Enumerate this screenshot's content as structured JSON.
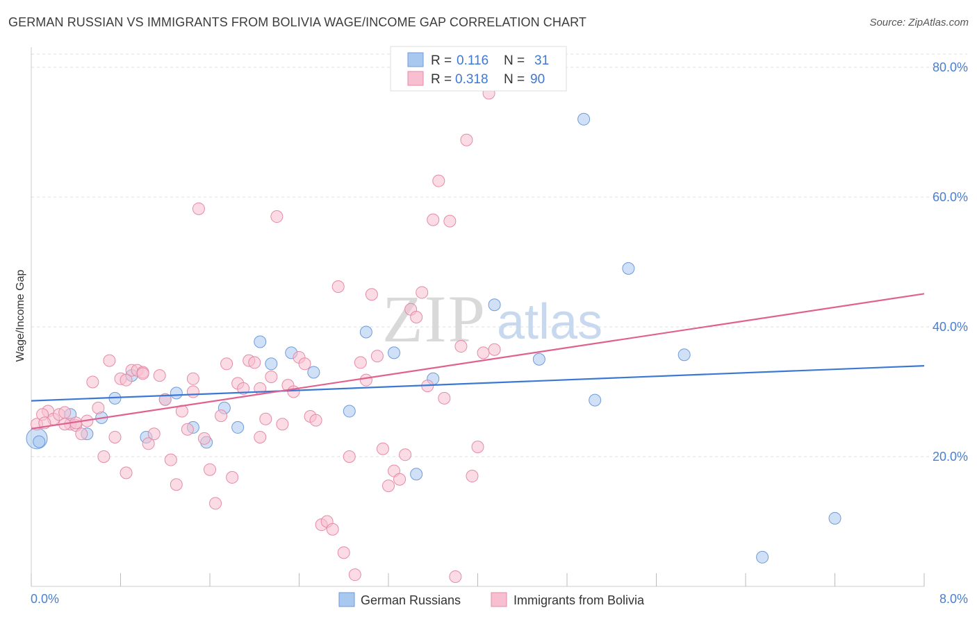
{
  "title": "GERMAN RUSSIAN VS IMMIGRANTS FROM BOLIVIA WAGE/INCOME GAP CORRELATION CHART",
  "source": "Source: ZipAtlas.com",
  "watermark": {
    "zip": "ZIP",
    "atlas": "atlas"
  },
  "legend_top": {
    "r_label": "R =",
    "n_label": "N =",
    "rows": [
      {
        "r": "0.116",
        "n": "31"
      },
      {
        "r": "0.318",
        "n": "90"
      }
    ]
  },
  "chart_data": {
    "type": "scatter",
    "title": "GERMAN RUSSIAN VS IMMIGRANTS FROM BOLIVIA WAGE/INCOME GAP CORRELATION CHART",
    "xlabel": "",
    "ylabel": "Wage/Income Gap",
    "xlim": [
      0,
      8
    ],
    "ylim": [
      0,
      82
    ],
    "x_tick_labels": [
      "0.0%",
      "8.0%"
    ],
    "y_ticks": [
      20,
      40,
      60,
      80
    ],
    "y_tick_labels": [
      "20.0%",
      "40.0%",
      "60.0%",
      "80.0%"
    ],
    "grid": true,
    "legend_position": "bottom",
    "series": [
      {
        "name": "German Russians",
        "color": "#a9c8f0",
        "stroke": "#6f9ad8",
        "line_color": "#3a78d4",
        "trend": {
          "x": [
            0,
            8
          ],
          "y": [
            28.6,
            34.0
          ]
        },
        "points": [
          [
            0.05,
            22.8
          ],
          [
            0.35,
            26.5
          ],
          [
            0.5,
            23.5
          ],
          [
            0.63,
            26.0
          ],
          [
            0.75,
            29.0
          ],
          [
            0.9,
            32.5
          ],
          [
            1.03,
            23.0
          ],
          [
            1.2,
            28.8
          ],
          [
            1.3,
            29.8
          ],
          [
            1.45,
            24.5
          ],
          [
            1.57,
            22.2
          ],
          [
            1.73,
            27.5
          ],
          [
            1.85,
            24.5
          ],
          [
            2.05,
            37.7
          ],
          [
            2.15,
            34.3
          ],
          [
            2.33,
            36.0
          ],
          [
            2.53,
            33.0
          ],
          [
            2.85,
            27.0
          ],
          [
            3.0,
            39.2
          ],
          [
            3.25,
            36.0
          ],
          [
            3.45,
            17.3
          ],
          [
            3.6,
            32.0
          ],
          [
            4.15,
            43.4
          ],
          [
            4.55,
            35.0
          ],
          [
            4.95,
            72.0
          ],
          [
            5.05,
            28.7
          ],
          [
            5.35,
            49.0
          ],
          [
            5.85,
            35.7
          ],
          [
            6.55,
            4.5
          ],
          [
            7.2,
            10.5
          ],
          [
            0.07,
            22.3
          ]
        ]
      },
      {
        "name": "Immigrants from Bolivia",
        "color": "#f7bfd0",
        "stroke": "#e58aa8",
        "line_color": "#e0608e",
        "trend": {
          "x": [
            0,
            8
          ],
          "y": [
            24.3,
            45.1
          ]
        },
        "points": [
          [
            0.05,
            25.0
          ],
          [
            0.15,
            27.0
          ],
          [
            0.2,
            25.8
          ],
          [
            0.25,
            26.5
          ],
          [
            0.3,
            26.8
          ],
          [
            0.35,
            25.0
          ],
          [
            0.4,
            24.8
          ],
          [
            0.45,
            23.5
          ],
          [
            0.5,
            25.5
          ],
          [
            0.55,
            31.5
          ],
          [
            0.6,
            27.5
          ],
          [
            0.65,
            20.0
          ],
          [
            0.7,
            34.8
          ],
          [
            0.75,
            23.0
          ],
          [
            0.8,
            32.0
          ],
          [
            0.85,
            17.5
          ],
          [
            0.9,
            33.3
          ],
          [
            0.95,
            33.3
          ],
          [
            1.0,
            33.0
          ],
          [
            1.05,
            22.0
          ],
          [
            1.1,
            23.5
          ],
          [
            1.15,
            32.5
          ],
          [
            1.2,
            28.8
          ],
          [
            1.25,
            19.5
          ],
          [
            1.3,
            15.7
          ],
          [
            1.35,
            27.0
          ],
          [
            1.4,
            24.2
          ],
          [
            1.45,
            32.0
          ],
          [
            1.5,
            58.2
          ],
          [
            1.55,
            22.8
          ],
          [
            1.6,
            18.0
          ],
          [
            1.65,
            12.8
          ],
          [
            1.7,
            26.3
          ],
          [
            1.75,
            34.3
          ],
          [
            1.8,
            16.8
          ],
          [
            1.85,
            31.3
          ],
          [
            1.9,
            30.5
          ],
          [
            1.95,
            34.8
          ],
          [
            2.0,
            34.5
          ],
          [
            2.05,
            23.0
          ],
          [
            2.1,
            25.8
          ],
          [
            2.15,
            32.3
          ],
          [
            2.2,
            57.0
          ],
          [
            2.25,
            25.0
          ],
          [
            2.3,
            31.0
          ],
          [
            2.35,
            30.0
          ],
          [
            2.4,
            35.3
          ],
          [
            2.45,
            34.3
          ],
          [
            2.5,
            26.2
          ],
          [
            2.55,
            25.6
          ],
          [
            2.6,
            9.5
          ],
          [
            2.65,
            10.0
          ],
          [
            2.7,
            8.8
          ],
          [
            2.75,
            46.2
          ],
          [
            2.8,
            5.2
          ],
          [
            2.85,
            20.0
          ],
          [
            2.9,
            1.8
          ],
          [
            2.95,
            34.5
          ],
          [
            3.0,
            31.8
          ],
          [
            3.05,
            45.0
          ],
          [
            3.1,
            35.5
          ],
          [
            3.15,
            21.2
          ],
          [
            3.2,
            15.5
          ],
          [
            3.25,
            17.8
          ],
          [
            3.3,
            16.5
          ],
          [
            3.35,
            20.3
          ],
          [
            3.4,
            42.7
          ],
          [
            3.45,
            41.5
          ],
          [
            3.5,
            45.3
          ],
          [
            3.55,
            30.9
          ],
          [
            3.6,
            56.5
          ],
          [
            3.65,
            62.5
          ],
          [
            3.7,
            29.0
          ],
          [
            3.75,
            56.3
          ],
          [
            3.8,
            1.5
          ],
          [
            3.85,
            37.0
          ],
          [
            3.9,
            68.8
          ],
          [
            3.95,
            17.0
          ],
          [
            4.0,
            21.5
          ],
          [
            4.05,
            36.0
          ],
          [
            4.1,
            76.0
          ],
          [
            4.15,
            36.5
          ],
          [
            0.1,
            26.5
          ],
          [
            0.3,
            25.0
          ],
          [
            0.12,
            25.2
          ],
          [
            1.0,
            32.8
          ],
          [
            1.45,
            30.0
          ],
          [
            2.05,
            30.5
          ],
          [
            0.85,
            31.8
          ],
          [
            0.4,
            25.2
          ]
        ]
      }
    ]
  },
  "bottom_legend": [
    "German Russians",
    "Immigrants from Bolivia"
  ]
}
